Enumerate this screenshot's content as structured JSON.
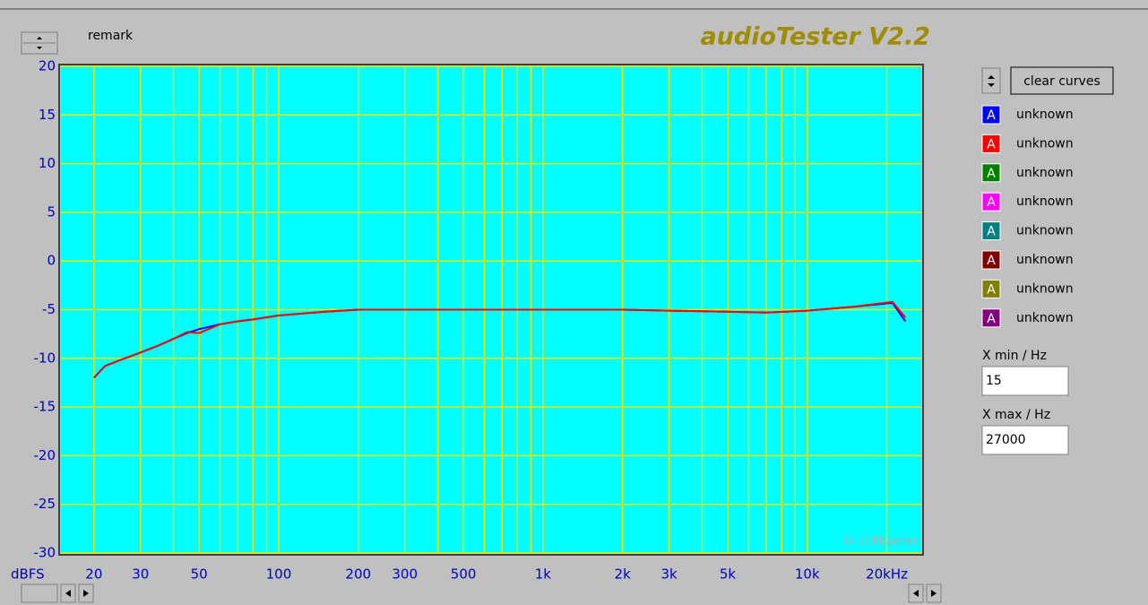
{
  "app_title": "audioTester V2.2",
  "remark": "remark",
  "clear_button": "clear curves",
  "swatch_letter": "A",
  "copyright": "© U.Mueller",
  "xmin_label": "X min / Hz",
  "xmin_value": "15",
  "xmax_label": "X max / Hz",
  "xmax_value": "27000",
  "chart_data": {
    "type": "line",
    "y_unit_label": "dBFS",
    "log_x": true,
    "grid": true,
    "xlim": [
      15,
      27000
    ],
    "ylim": [
      -30,
      20
    ],
    "yticks": [
      -30,
      -25,
      -20,
      -15,
      -10,
      -5,
      0,
      5,
      10,
      15,
      20
    ],
    "xticks": [
      20,
      30,
      50,
      100,
      200,
      300,
      500,
      {
        "value": 1000,
        "label": "1k"
      },
      {
        "value": 2000,
        "label": "2k"
      },
      {
        "value": 3000,
        "label": "3k"
      },
      {
        "value": 5000,
        "label": "5k"
      },
      {
        "value": 10000,
        "label": "10k"
      },
      {
        "value": 20000,
        "label": "20kHz"
      }
    ],
    "xminor": [
      40,
      60,
      70,
      80,
      90,
      400,
      600,
      700,
      800,
      900,
      4000,
      6000,
      7000,
      8000,
      9000
    ],
    "x": [
      20,
      22,
      25,
      30,
      35,
      40,
      45,
      50,
      60,
      70,
      80,
      100,
      150,
      200,
      300,
      1000,
      2000,
      3000,
      5000,
      7000,
      10000,
      15000,
      21000,
      23500
    ],
    "series": [
      {
        "name": "unknown",
        "color": "#0000ff",
        "values": [
          -12,
          -10.8,
          -10.2,
          -9.4,
          -8.7,
          -8.0,
          -7.4,
          -7.0,
          -6.5,
          -6.2,
          -6.0,
          -5.6,
          -5.2,
          -5.0,
          -5.0,
          -5.0,
          -5.0,
          -5.1,
          -5.2,
          -5.3,
          -5.1,
          -4.7,
          -4.3,
          -6.2
        ]
      },
      {
        "name": "unknown",
        "color": "#ff0000",
        "values": [
          -12,
          -10.8,
          -10.2,
          -9.4,
          -8.7,
          -8.0,
          -7.3,
          -7.4,
          -6.5,
          -6.2,
          -6.0,
          -5.6,
          -5.2,
          -5.0,
          -5.0,
          -5.0,
          -5.0,
          -5.1,
          -5.2,
          -5.3,
          -5.1,
          -4.7,
          -4.2,
          -5.8
        ]
      },
      {
        "name": "unknown",
        "color": "#008000",
        "values": [
          null,
          null,
          null,
          null,
          null,
          null,
          null,
          null,
          null,
          null,
          null,
          null,
          null,
          null,
          null,
          null,
          null,
          null,
          null,
          null,
          null,
          null,
          null,
          null
        ]
      },
      {
        "name": "unknown",
        "color": "#ff00ff",
        "values": [
          null,
          null,
          null,
          null,
          null,
          null,
          null,
          null,
          null,
          null,
          null,
          null,
          null,
          null,
          null,
          null,
          null,
          null,
          null,
          null,
          null,
          null,
          null,
          null
        ]
      },
      {
        "name": "unknown",
        "color": "#008080",
        "values": [
          null,
          null,
          null,
          null,
          null,
          null,
          null,
          null,
          null,
          null,
          null,
          null,
          null,
          null,
          null,
          null,
          null,
          null,
          null,
          null,
          null,
          null,
          null,
          null
        ]
      },
      {
        "name": "unknown",
        "color": "#800000",
        "values": [
          null,
          null,
          null,
          null,
          null,
          null,
          null,
          null,
          null,
          null,
          null,
          null,
          null,
          null,
          null,
          null,
          null,
          null,
          null,
          null,
          null,
          null,
          null,
          null
        ]
      },
      {
        "name": "unknown",
        "color": "#808000",
        "values": [
          null,
          null,
          null,
          null,
          null,
          null,
          null,
          null,
          null,
          null,
          null,
          null,
          null,
          null,
          null,
          null,
          null,
          null,
          null,
          null,
          null,
          null,
          null,
          null
        ]
      },
      {
        "name": "unknown",
        "color": "#800080",
        "values": [
          null,
          null,
          null,
          null,
          null,
          null,
          null,
          null,
          null,
          null,
          null,
          null,
          null,
          null,
          null,
          null,
          null,
          null,
          null,
          null,
          null,
          null,
          null,
          null
        ]
      }
    ]
  }
}
